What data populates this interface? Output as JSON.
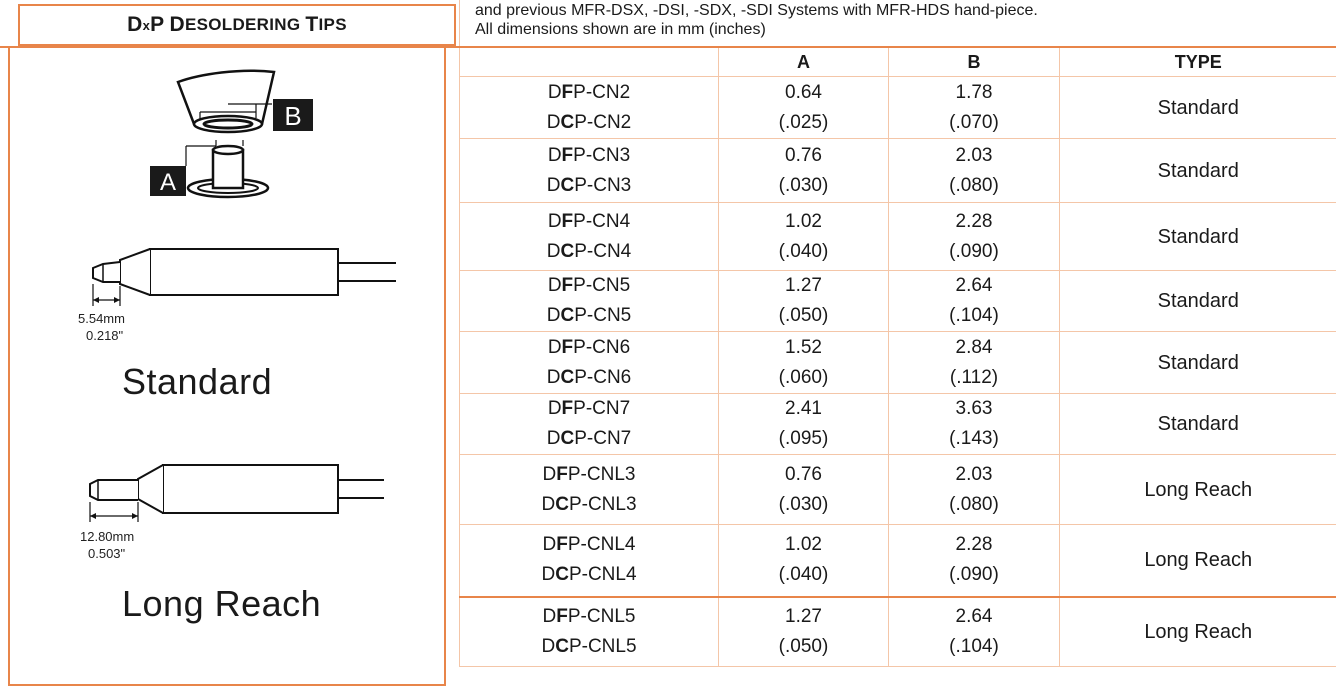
{
  "title": {
    "first": "D",
    "x": "x",
    "second": "P",
    "d_initial": "D",
    "d_rest": "ESOLDERING",
    "t_initial": "T",
    "t_rest": "IPS"
  },
  "header_note": {
    "line1": "and previous MFR-DSX, -DSI, -SDX, -SDI Systems with MFR-HDS hand-piece.",
    "line2": "All dimensions shown are in mm (inches)"
  },
  "diagram": {
    "label_a": "A",
    "label_b": "B"
  },
  "standard_tip": {
    "dim_mm": "5.54mm",
    "dim_in": "0.218\"",
    "label": "Standard"
  },
  "long_reach_tip": {
    "dim_mm": "12.80mm",
    "dim_in": "0.503\"",
    "label": "Long Reach"
  },
  "table": {
    "headers": {
      "part": "",
      "a": "A",
      "b": "B",
      "type": "TYPE"
    },
    "rows": [
      {
        "p1": "D",
        "p1b": "F",
        "p1c": "P-CN2",
        "p2": "D",
        "p2b": "C",
        "p2c": "P-CN2",
        "a_mm": "0.64",
        "a_in": "(.025)",
        "b_mm": "1.78",
        "b_in": "(.070)",
        "type": "Standard"
      },
      {
        "p1": "D",
        "p1b": "F",
        "p1c": "P-CN3",
        "p2": "D",
        "p2b": "C",
        "p2c": "P-CN3",
        "a_mm": "0.76",
        "a_in": "(.030)",
        "b_mm": "2.03",
        "b_in": "(.080)",
        "type": "Standard"
      },
      {
        "p1": "D",
        "p1b": "F",
        "p1c": "P-CN4",
        "p2": "D",
        "p2b": "C",
        "p2c": "P-CN4",
        "a_mm": "1.02",
        "a_in": "(.040)",
        "b_mm": "2.28",
        "b_in": "(.090)",
        "type": "Standard"
      },
      {
        "p1": "D",
        "p1b": "F",
        "p1c": "P-CN5",
        "p2": "D",
        "p2b": "C",
        "p2c": "P-CN5",
        "a_mm": "1.27",
        "a_in": "(.050)",
        "b_mm": "2.64",
        "b_in": "(.104)",
        "type": "Standard"
      },
      {
        "p1": "D",
        "p1b": "F",
        "p1c": "P-CN6",
        "p2": "D",
        "p2b": "C",
        "p2c": "P-CN6",
        "a_mm": "1.52",
        "a_in": "(.060)",
        "b_mm": "2.84",
        "b_in": "(.112)",
        "type": "Standard"
      },
      {
        "p1": "D",
        "p1b": "F",
        "p1c": "P-CN7",
        "p2": "D",
        "p2b": "C",
        "p2c": "P-CN7",
        "a_mm": "2.41",
        "a_in": "(.095)",
        "b_mm": "3.63",
        "b_in": "(.143)",
        "type": "Standard"
      },
      {
        "p1": "D",
        "p1b": "F",
        "p1c": "P-CNL3",
        "p2": "D",
        "p2b": "C",
        "p2c": "P-CNL3",
        "a_mm": "0.76",
        "a_in": "(.030)",
        "b_mm": "2.03",
        "b_in": "(.080)",
        "type": "Long Reach"
      },
      {
        "p1": "D",
        "p1b": "F",
        "p1c": "P-CNL4",
        "p2": "D",
        "p2b": "C",
        "p2c": "P-CNL4",
        "a_mm": "1.02",
        "a_in": "(.040)",
        "b_mm": "2.28",
        "b_in": "(.090)",
        "type": "Long Reach"
      },
      {
        "p1": "D",
        "p1b": "F",
        "p1c": "P-CNL5",
        "p2": "D",
        "p2b": "C",
        "p2c": "P-CNL5",
        "a_mm": "1.27",
        "a_in": "(.050)",
        "b_mm": "2.64",
        "b_in": "(.104)",
        "type": "Long Reach"
      }
    ]
  },
  "colors": {
    "accent_orange": "#e8854a",
    "light_rule": "#f4c6a8",
    "ink": "#1a1a1a"
  }
}
